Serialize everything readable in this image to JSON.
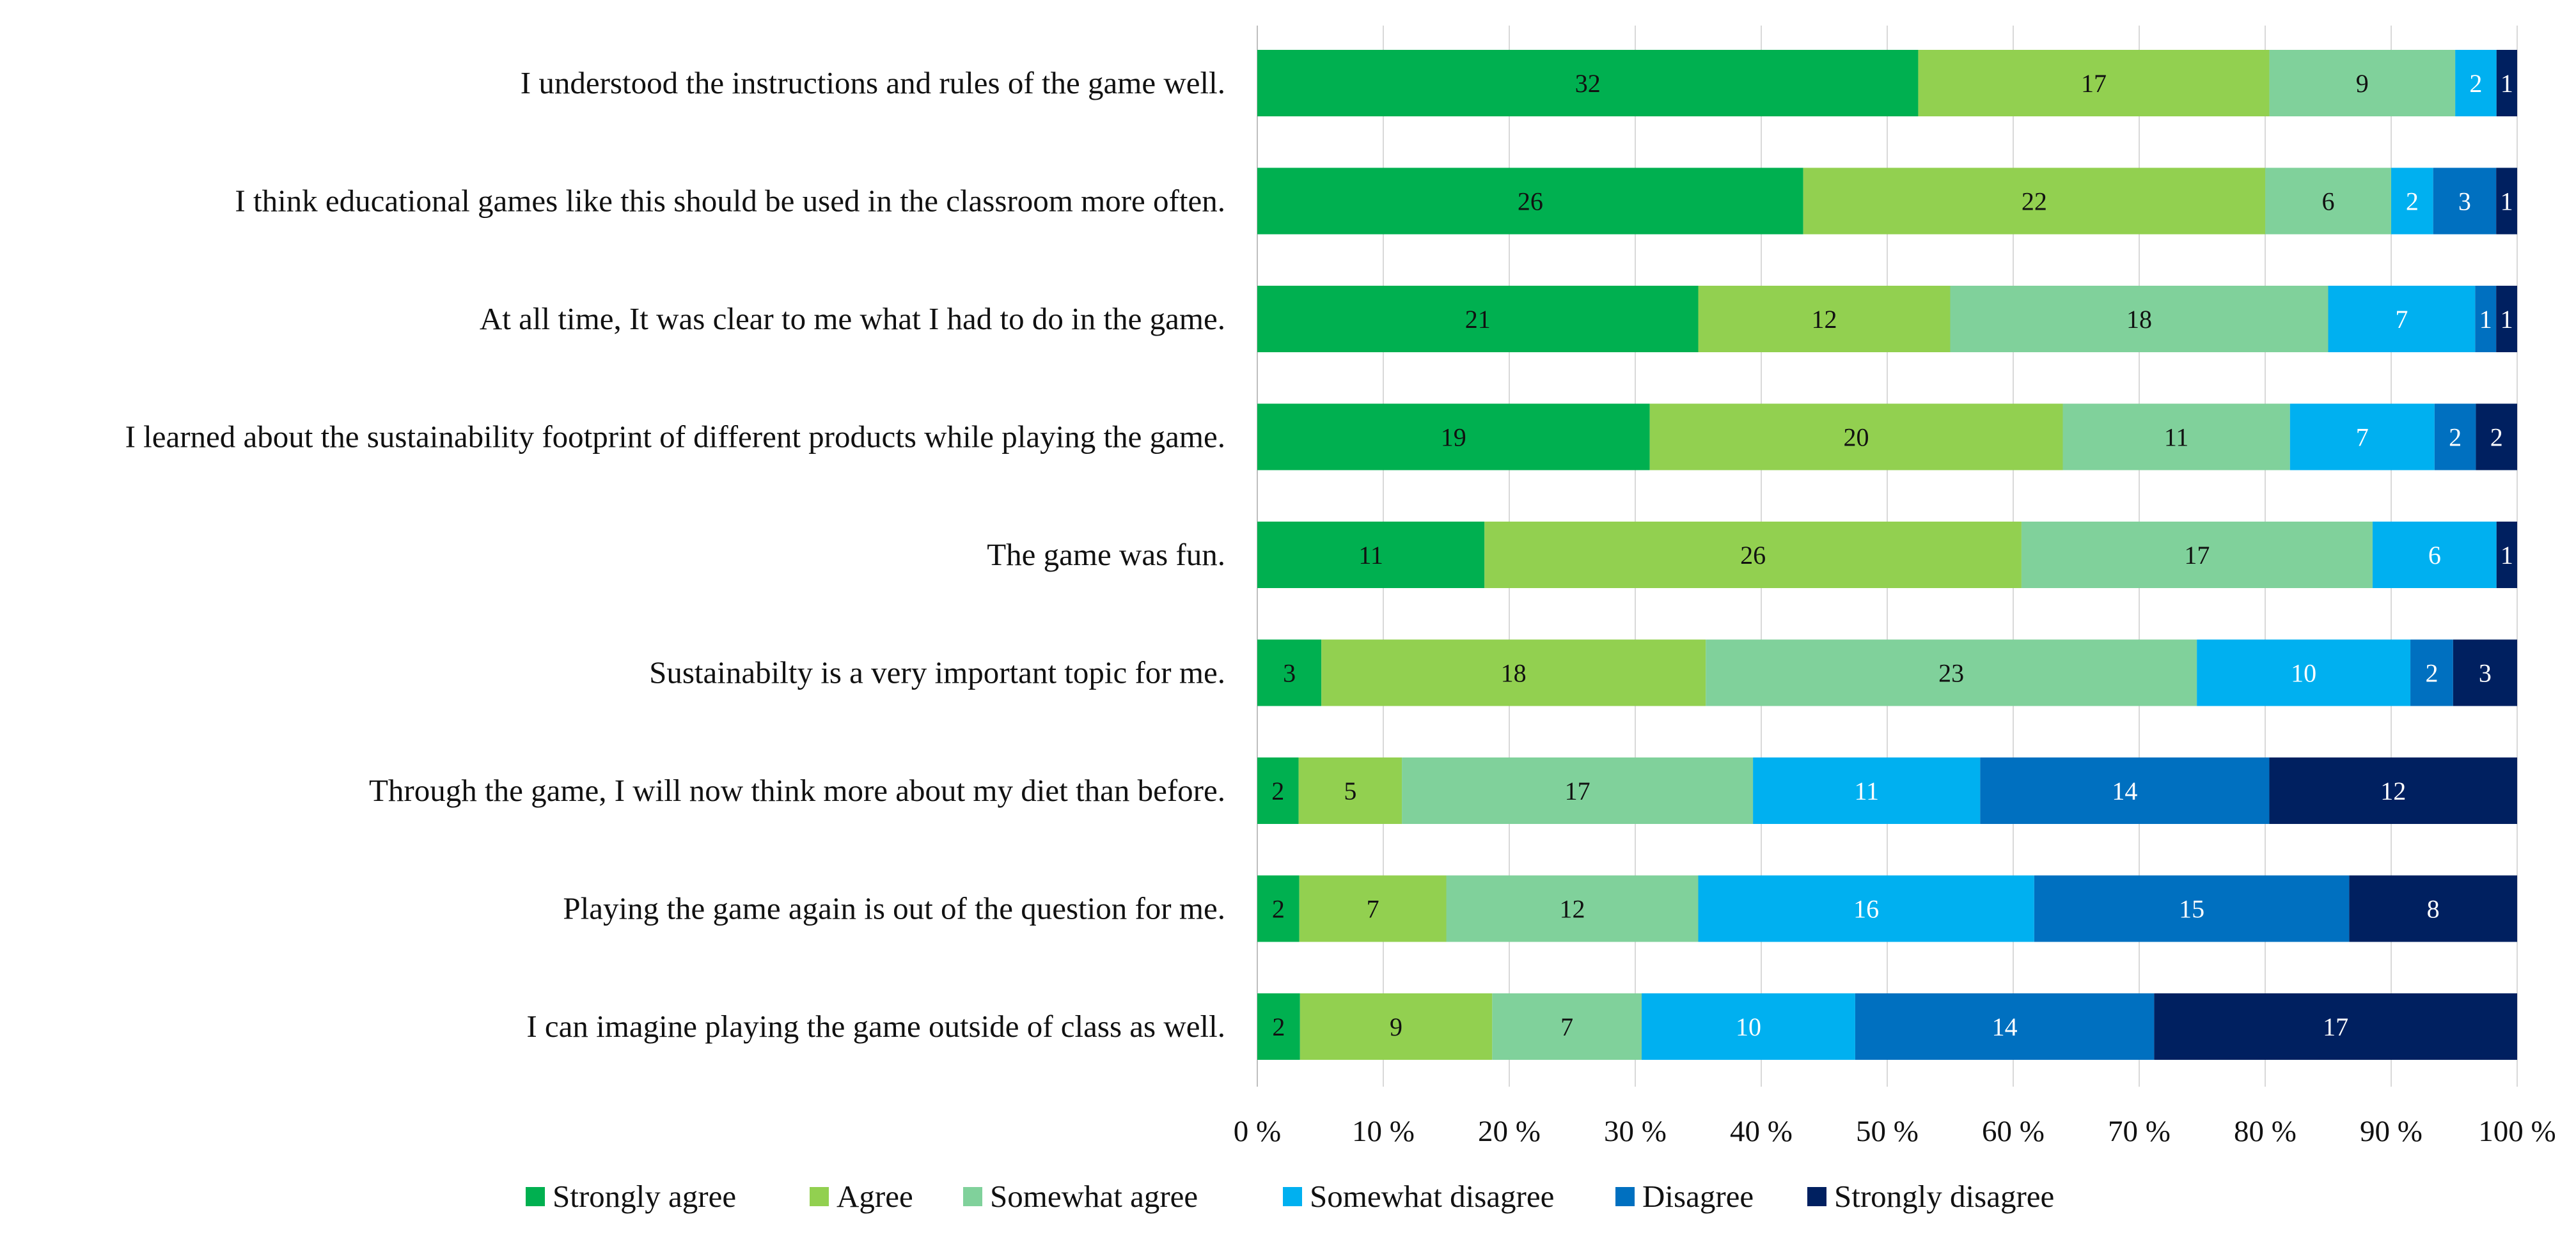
{
  "chart_data": {
    "type": "bar",
    "orientation": "horizontal",
    "stacked": "percent",
    "title": "",
    "xlabel": "",
    "ylabel": "",
    "xlim": [
      0,
      100
    ],
    "grid": true,
    "legend_position": "bottom",
    "x_ticks": [
      "0 %",
      "10 %",
      "20 %",
      "30 %",
      "40 %",
      "50 %",
      "60 %",
      "70 %",
      "80 %",
      "90 %",
      "100 %"
    ],
    "categories": [
      "I understood the instructions and rules of the game well.",
      "I think educational games like this should be used in the classroom more often.",
      "At all time, It was clear to me what I had to do in the game.",
      "I learned about the sustainability footprint of different products while playing the game.",
      "The game was fun.",
      "Sustainabilty is a very important topic for me.",
      "Through the game, I will now think more about my diet than before.",
      "Playing the game again is out of the question for me.",
      "I can imagine playing the game outside of class as well."
    ],
    "series": [
      {
        "name": "Strongly agree",
        "color": "#00b050",
        "label_color": "#111111",
        "values": [
          32,
          26,
          21,
          19,
          11,
          3,
          2,
          2,
          2
        ]
      },
      {
        "name": "Agree",
        "color": "#92d050",
        "label_color": "#111111",
        "values": [
          17,
          22,
          12,
          20,
          26,
          18,
          5,
          7,
          9
        ]
      },
      {
        "name": "Somewhat agree",
        "color": "#80d19b",
        "label_color": "#111111",
        "values": [
          9,
          6,
          18,
          11,
          17,
          23,
          17,
          12,
          7
        ]
      },
      {
        "name": "Somewhat disagree",
        "color": "#00b0f0",
        "label_color": "#ffffff",
        "values": [
          2,
          2,
          7,
          7,
          6,
          10,
          11,
          16,
          10
        ]
      },
      {
        "name": "Disagree",
        "color": "#0070c0",
        "label_color": "#ffffff",
        "values": [
          0,
          3,
          1,
          2,
          0,
          2,
          14,
          15,
          14
        ]
      },
      {
        "name": "Strongly disagree",
        "color": "#002060",
        "label_color": "#ffffff",
        "values": [
          1,
          1,
          1,
          2,
          1,
          3,
          12,
          8,
          17
        ]
      }
    ]
  }
}
